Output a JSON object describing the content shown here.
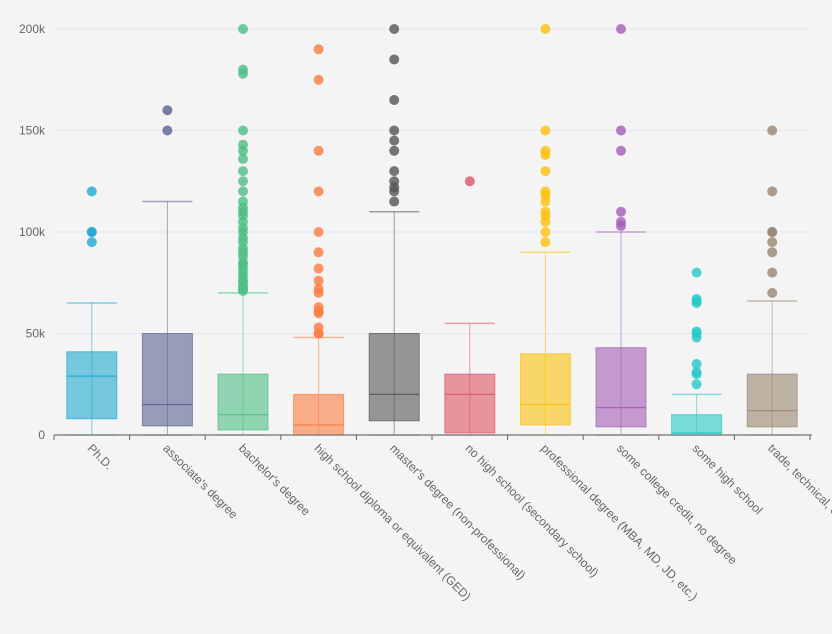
{
  "chart_data": {
    "type": "boxplot",
    "title": "",
    "xlabel": "",
    "ylabel": "",
    "ylim": [
      0,
      200000
    ],
    "y_ticks": [
      "0",
      "50k",
      "100k",
      "150k",
      "200k"
    ],
    "y_tick_values": [
      0,
      50000,
      100000,
      150000,
      200000
    ],
    "grid": "horizontal",
    "categories": [
      {
        "name": "Ph.D.",
        "color": "#1fa9cf",
        "low": 0,
        "q1": 8000,
        "median": 29000,
        "q3": 41000,
        "high": 65000,
        "outliers": [
          95000,
          100000,
          100000,
          120000
        ]
      },
      {
        "name": "associate's degree",
        "color": "#5a6190",
        "low": 0,
        "q1": 4500,
        "median": 15000,
        "q3": 50000,
        "high": 115000,
        "outliers": [
          150000,
          160000
        ]
      },
      {
        "name": "bachelor's degree",
        "color": "#4dbe83",
        "low": 0,
        "q1": 2500,
        "median": 10000,
        "q3": 30000,
        "high": 70000,
        "outliers": [
          71000,
          72000,
          73000,
          75000,
          76000,
          78000,
          80000,
          82000,
          84000,
          85000,
          88000,
          90000,
          92000,
          95000,
          97000,
          100000,
          102000,
          105000,
          108000,
          110000,
          112000,
          115000,
          120000,
          125000,
          130000,
          136000,
          140000,
          143000,
          150000,
          178000,
          180000,
          200000
        ]
      },
      {
        "name": "high school diploma or equivalent (GED)",
        "color": "#fb7c3f",
        "low": 0,
        "q1": 0,
        "median": 5000,
        "q3": 20000,
        "high": 48000,
        "outliers": [
          50000,
          50000,
          53000,
          60000,
          61000,
          63000,
          70000,
          72000,
          76000,
          82000,
          90000,
          100000,
          120000,
          140000,
          175000,
          190000
        ]
      },
      {
        "name": "master's degree (non-professional)",
        "color": "#555555",
        "low": 0,
        "q1": 7000,
        "median": 20000,
        "q3": 50000,
        "high": 110000,
        "outliers": [
          115000,
          120000,
          122000,
          125000,
          130000,
          140000,
          145000,
          150000,
          165000,
          185000,
          200000
        ]
      },
      {
        "name": "no high school (secondary school)",
        "color": "#e05465",
        "low": 0,
        "q1": 1000,
        "median": 20000,
        "q3": 30000,
        "high": 55000,
        "outliers": [
          125000
        ]
      },
      {
        "name": "professional degree (MBA, MD, JD, etc.)",
        "color": "#fcc10c",
        "low": 0,
        "q1": 5000,
        "median": 15000,
        "q3": 40000,
        "high": 90000,
        "outliers": [
          95000,
          100000,
          105000,
          108000,
          110000,
          115000,
          118000,
          120000,
          130000,
          138000,
          140000,
          150000,
          200000
        ]
      },
      {
        "name": "some college credit, no degree",
        "color": "#a15cb8",
        "low": 0,
        "q1": 4000,
        "median": 13500,
        "q3": 43000,
        "high": 100000,
        "outliers": [
          103000,
          105000,
          110000,
          140000,
          150000,
          200000
        ]
      },
      {
        "name": "some high school",
        "color": "#25c9c5",
        "low": 0,
        "q1": 0,
        "median": 1000,
        "q3": 10000,
        "high": 20000,
        "outliers": [
          25000,
          30000,
          31000,
          35000,
          48000,
          50000,
          51000,
          65000,
          66000,
          67000,
          80000
        ]
      },
      {
        "name": "trade, technical, or vocational training",
        "color": "#9a8670",
        "low": 0,
        "q1": 4000,
        "median": 12000,
        "q3": 30000,
        "high": 66000,
        "outliers": [
          70000,
          80000,
          90000,
          95000,
          100000,
          100000,
          120000,
          150000
        ]
      }
    ]
  }
}
